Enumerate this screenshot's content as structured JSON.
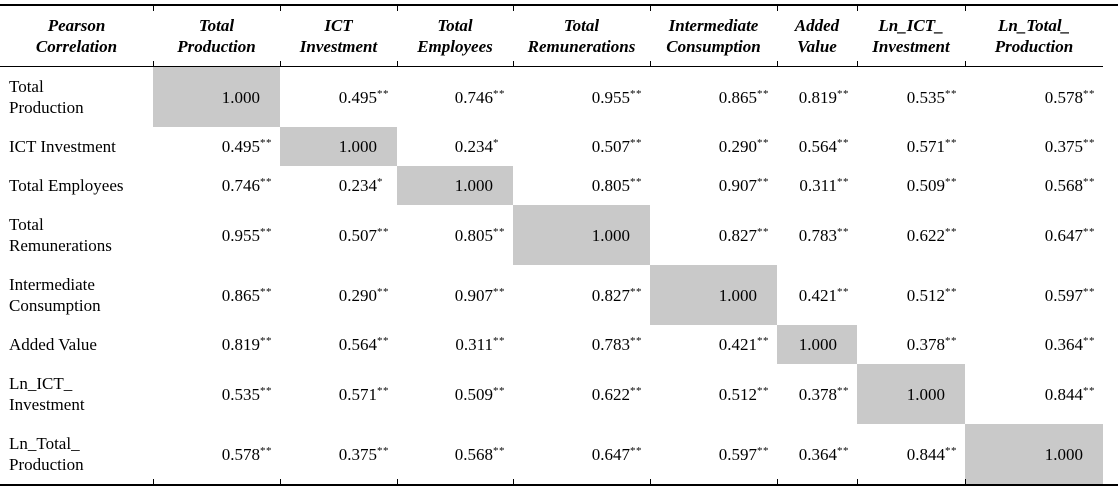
{
  "colors": {
    "diagonal_bg": "#c9c9c9",
    "rule": "#000000",
    "text": "#000000",
    "background": "#ffffff"
  },
  "table": {
    "corner": {
      "line1": "Pearson",
      "line2": "Correlation"
    },
    "columns": [
      {
        "line1": "Total",
        "line2": "Production"
      },
      {
        "line1": "ICT",
        "line2": "Investment"
      },
      {
        "line1": "Total",
        "line2": "Employees"
      },
      {
        "line1": "Total",
        "line2": "Remunerations"
      },
      {
        "line1": "Intermediate",
        "line2": "Consumption"
      },
      {
        "line1": "Added",
        "line2": "Value"
      },
      {
        "line1": "Ln_ICT_",
        "line2": "Investment"
      },
      {
        "line1": "Ln_Total_",
        "line2": "Production"
      }
    ],
    "rows": [
      {
        "label_lines": [
          "Total",
          "Production"
        ],
        "cells": [
          {
            "value": "1.000",
            "stars": "",
            "diagonal": true
          },
          {
            "value": "0.495",
            "stars": "**"
          },
          {
            "value": "0.746",
            "stars": "**"
          },
          {
            "value": "0.955",
            "stars": "**"
          },
          {
            "value": "0.865",
            "stars": "**"
          },
          {
            "value": "0.819",
            "stars": "**"
          },
          {
            "value": "0.535",
            "stars": "**"
          },
          {
            "value": "0.578",
            "stars": "**"
          }
        ]
      },
      {
        "label_lines": [
          "ICT Investment"
        ],
        "cells": [
          {
            "value": "0.495",
            "stars": "**"
          },
          {
            "value": "1.000",
            "stars": "",
            "diagonal": true
          },
          {
            "value": "0.234",
            "stars": "*"
          },
          {
            "value": "0.507",
            "stars": "**"
          },
          {
            "value": "0.290",
            "stars": "**"
          },
          {
            "value": "0.564",
            "stars": "**"
          },
          {
            "value": "0.571",
            "stars": "**"
          },
          {
            "value": "0.375",
            "stars": "**"
          }
        ]
      },
      {
        "label_lines": [
          "Total Employees"
        ],
        "cells": [
          {
            "value": "0.746",
            "stars": "**"
          },
          {
            "value": "0.234",
            "stars": "*"
          },
          {
            "value": "1.000",
            "stars": "",
            "diagonal": true
          },
          {
            "value": "0.805",
            "stars": "**"
          },
          {
            "value": "0.907",
            "stars": "**"
          },
          {
            "value": "0.311",
            "stars": "**"
          },
          {
            "value": "0.509",
            "stars": "**"
          },
          {
            "value": "0.568",
            "stars": "**"
          }
        ]
      },
      {
        "label_lines": [
          "Total",
          "Remunerations"
        ],
        "cells": [
          {
            "value": "0.955",
            "stars": "**"
          },
          {
            "value": "0.507",
            "stars": "**"
          },
          {
            "value": "0.805",
            "stars": "**"
          },
          {
            "value": "1.000",
            "stars": "",
            "diagonal": true
          },
          {
            "value": "0.827",
            "stars": "**"
          },
          {
            "value": "0.783",
            "stars": "**"
          },
          {
            "value": "0.622",
            "stars": "**"
          },
          {
            "value": "0.647",
            "stars": "**"
          }
        ]
      },
      {
        "label_lines": [
          "Intermediate",
          "Consumption"
        ],
        "cells": [
          {
            "value": "0.865",
            "stars": "**"
          },
          {
            "value": "0.290",
            "stars": "**"
          },
          {
            "value": "0.907",
            "stars": "**"
          },
          {
            "value": "0.827",
            "stars": "**"
          },
          {
            "value": "1.000",
            "stars": "",
            "diagonal": true
          },
          {
            "value": "0.421",
            "stars": "**"
          },
          {
            "value": "0.512",
            "stars": "**"
          },
          {
            "value": "0.597",
            "stars": "**"
          }
        ]
      },
      {
        "label_lines": [
          "Added Value"
        ],
        "cells": [
          {
            "value": "0.819",
            "stars": "**"
          },
          {
            "value": "0.564",
            "stars": "**"
          },
          {
            "value": "0.311",
            "stars": "**"
          },
          {
            "value": "0.783",
            "stars": "**"
          },
          {
            "value": "0.421",
            "stars": "**"
          },
          {
            "value": "1.000",
            "stars": "",
            "diagonal": true
          },
          {
            "value": "0.378",
            "stars": "**"
          },
          {
            "value": "0.364",
            "stars": "**"
          }
        ]
      },
      {
        "label_lines": [
          "Ln_ICT_",
          "Investment"
        ],
        "cells": [
          {
            "value": "0.535",
            "stars": "**"
          },
          {
            "value": "0.571",
            "stars": "**"
          },
          {
            "value": "0.509",
            "stars": "**"
          },
          {
            "value": "0.622",
            "stars": "**"
          },
          {
            "value": "0.512",
            "stars": "**"
          },
          {
            "value": "0.378",
            "stars": "**"
          },
          {
            "value": "1.000",
            "stars": "",
            "diagonal": true
          },
          {
            "value": "0.844",
            "stars": "**"
          }
        ]
      },
      {
        "label_lines": [
          "Ln_Total_",
          "Production"
        ],
        "cells": [
          {
            "value": "0.578",
            "stars": "**"
          },
          {
            "value": "0.375",
            "stars": "**"
          },
          {
            "value": "0.568",
            "stars": "**"
          },
          {
            "value": "0.647",
            "stars": "**"
          },
          {
            "value": "0.597",
            "stars": "**"
          },
          {
            "value": "0.364",
            "stars": "**"
          },
          {
            "value": "0.844",
            "stars": "**"
          },
          {
            "value": "1.000",
            "stars": "",
            "diagonal": true
          }
        ]
      }
    ]
  }
}
